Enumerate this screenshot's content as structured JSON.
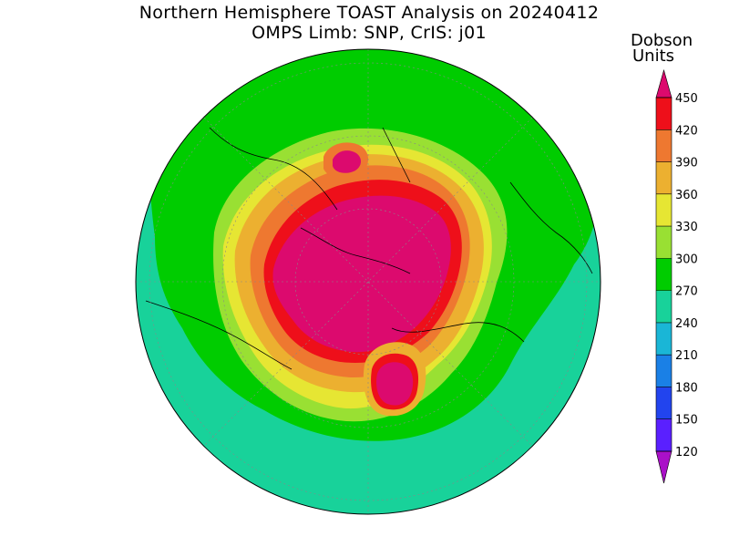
{
  "title": {
    "line1": "Northern Hemisphere TOAST Analysis on 20240412",
    "line2": "OMPS Limb: SNP, CrIS: j01"
  },
  "units": {
    "line1": "Dobson",
    "line2": "Units"
  },
  "colorbar": {
    "levels": [
      120,
      150,
      180,
      210,
      240,
      270,
      300,
      330,
      360,
      390,
      420,
      450
    ],
    "labels": [
      "120",
      "150",
      "180",
      "210",
      "240",
      "270",
      "300",
      "330",
      "360",
      "390",
      "420",
      "450"
    ],
    "colors": [
      "#7a10e0",
      "#5a20ff",
      "#2244ee",
      "#1a80e6",
      "#1ab6d6",
      "#18d29a",
      "#00cc00",
      "#99e033",
      "#e6e633",
      "#ecb030",
      "#ee7830",
      "#ee0f1a",
      "#dc0a6e"
    ],
    "low_arrow_color": "#aa10c8",
    "high_arrow_color": "#dc0a6e"
  },
  "map": {
    "projection": "north polar stereographic",
    "background_color": "#18d29a"
  }
}
